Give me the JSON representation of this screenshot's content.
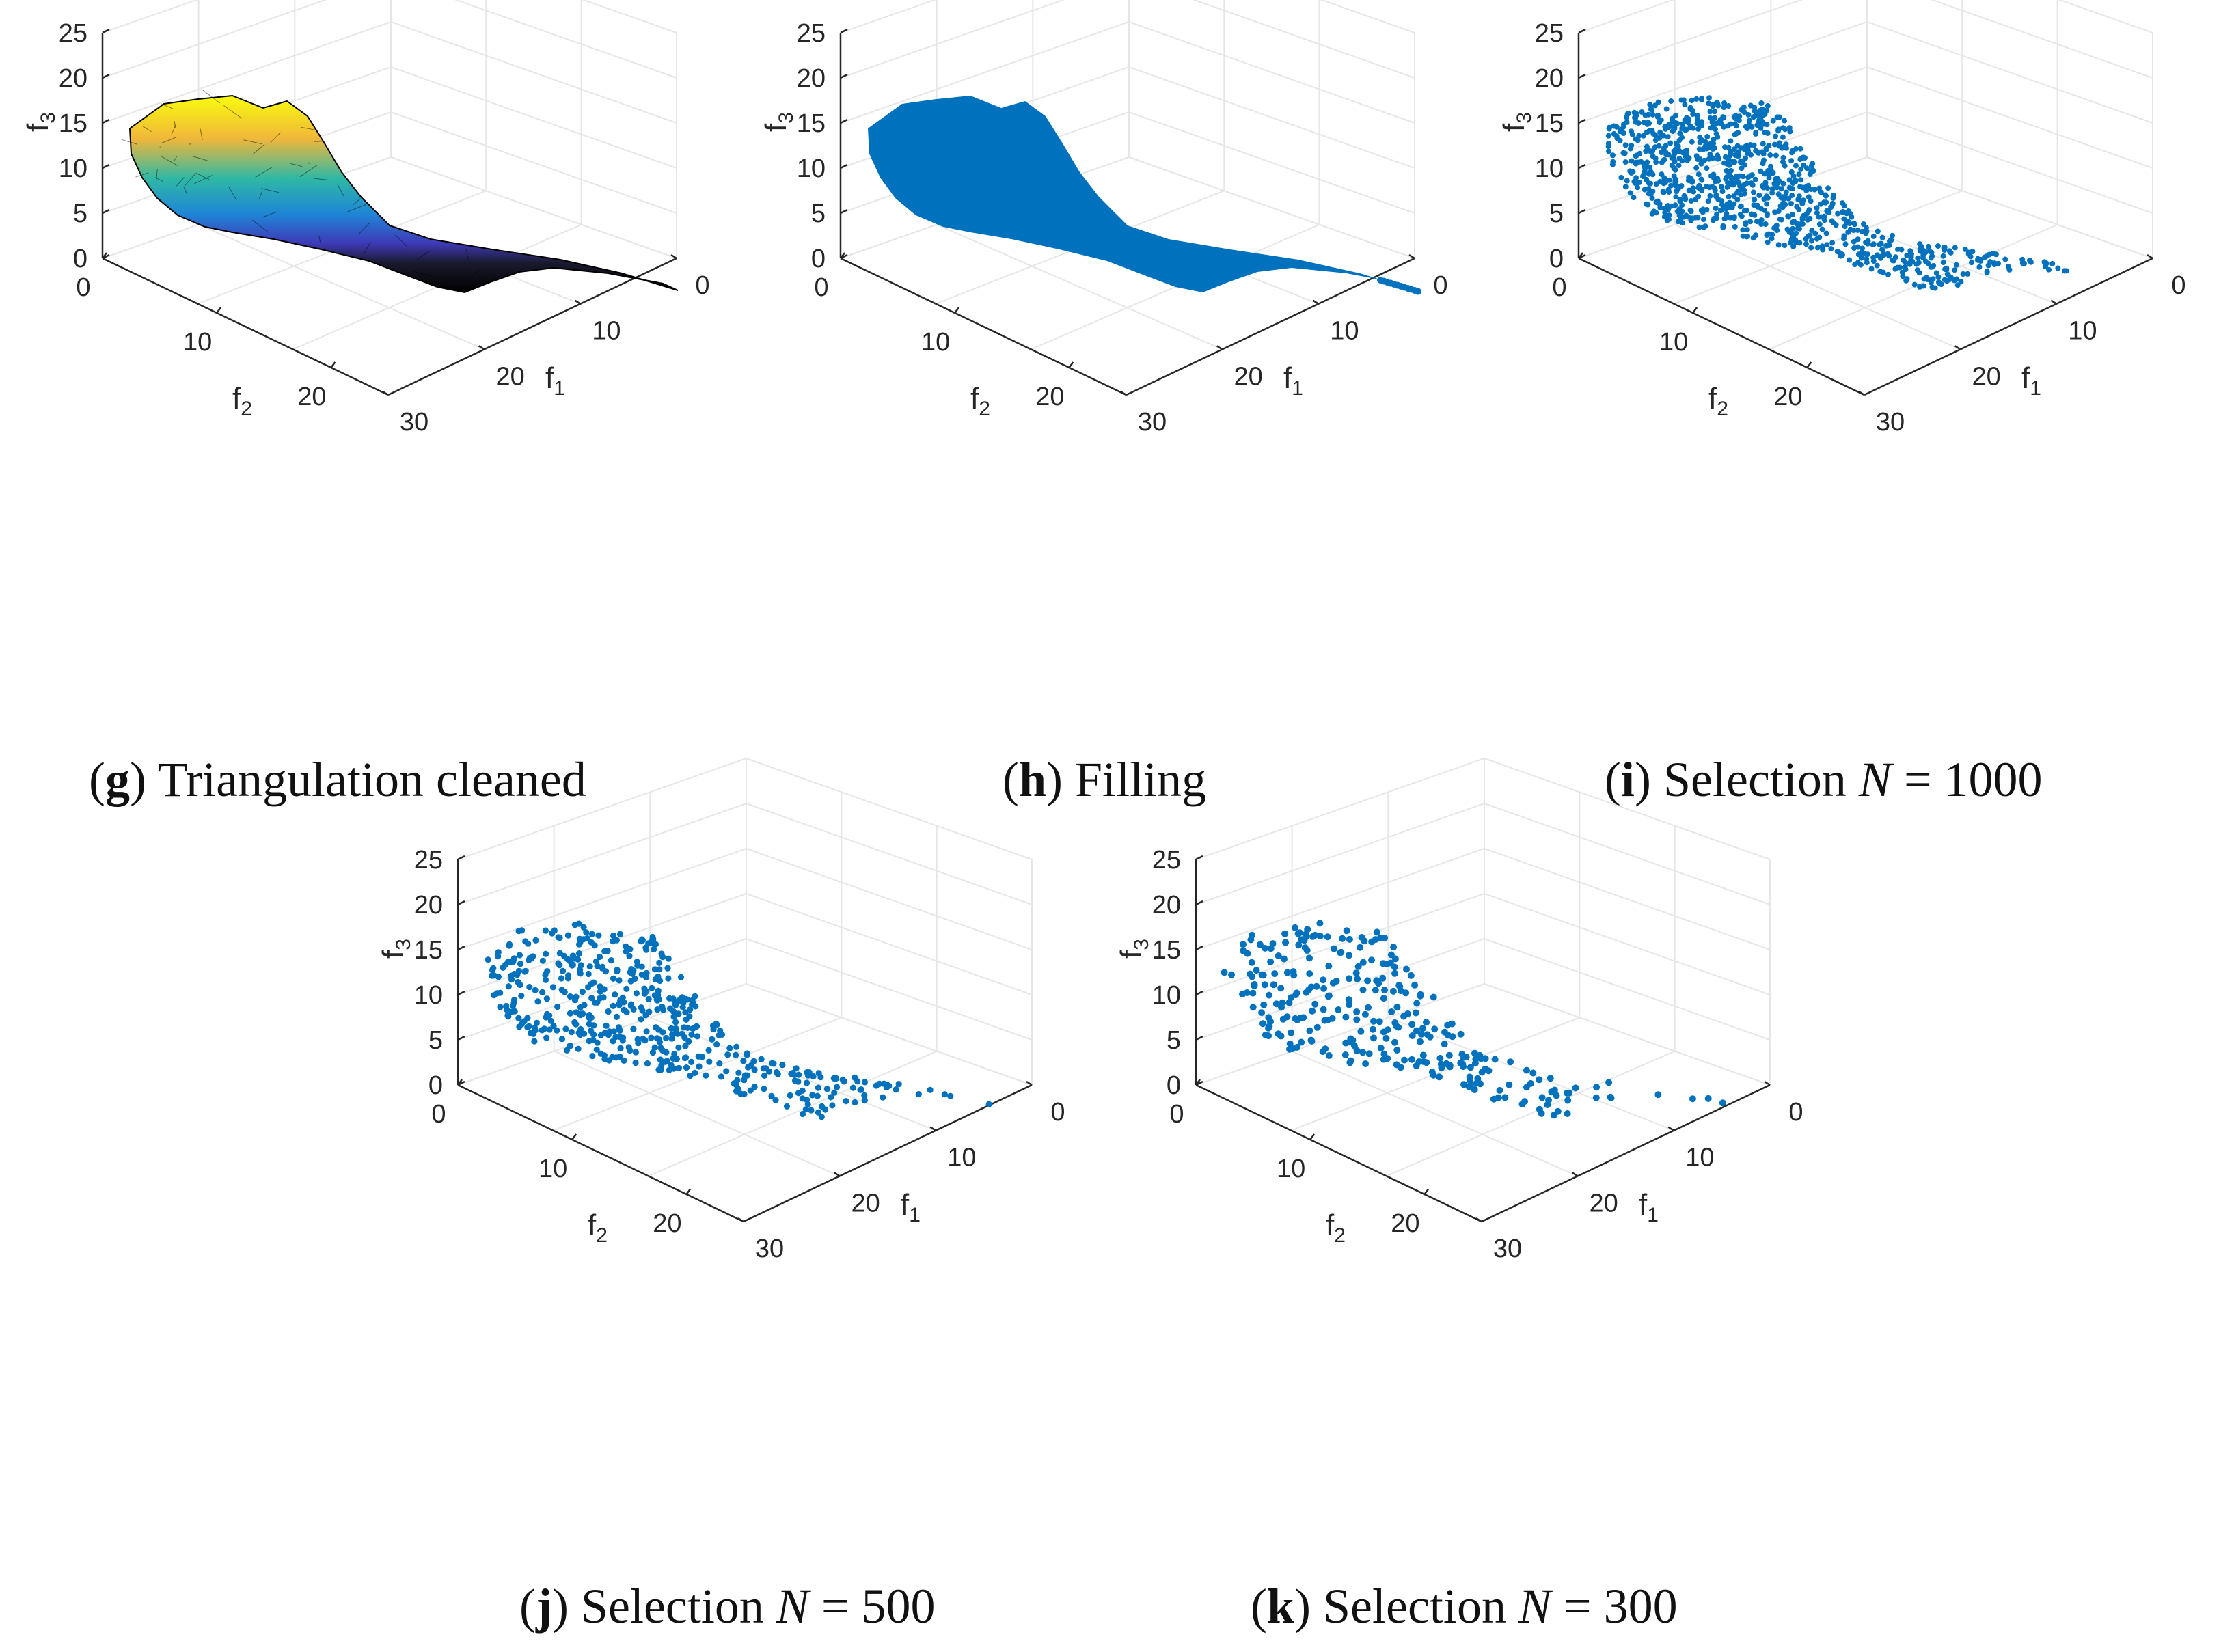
{
  "axes": {
    "f1_label": "f",
    "f1_sub": "1",
    "f2_label": "f",
    "f2_sub": "2",
    "f3_label": "f",
    "f3_sub": "3",
    "f1_ticks": [
      "0",
      "10",
      "20",
      "30"
    ],
    "f2_ticks": [
      "0",
      "10",
      "20"
    ],
    "f3_ticks": [
      "0",
      "5",
      "10",
      "15",
      "20",
      "25"
    ]
  },
  "colors": {
    "points": "#0072BD",
    "axis": "#262626",
    "grid": "#e6e6e6"
  },
  "chart_data": [
    {
      "id": "g",
      "type": "surface",
      "render": "triangulated-mesh",
      "caption_letter": "g",
      "caption_text": "Triangulation cleaned",
      "caption_eq": "",
      "caption_n": "",
      "xlabel": "f1",
      "ylabel": "f2",
      "zlabel": "f3",
      "xlim": [
        0,
        30
      ],
      "ylim": [
        0,
        25
      ],
      "zlim": [
        0,
        25
      ],
      "colormap": "parula",
      "series": [
        {
          "name": "surface",
          "n_points": 0
        }
      ]
    },
    {
      "id": "h",
      "type": "scatter",
      "render": "dense-filled",
      "caption_letter": "h",
      "caption_text": "Filling",
      "caption_eq": "",
      "caption_n": "",
      "xlabel": "f1",
      "ylabel": "f2",
      "zlabel": "f3",
      "xlim": [
        0,
        30
      ],
      "ylim": [
        0,
        25
      ],
      "zlim": [
        0,
        25
      ],
      "series": [
        {
          "name": "points",
          "n_points": 6000
        }
      ]
    },
    {
      "id": "i",
      "type": "scatter",
      "render": "points",
      "caption_letter": "i",
      "caption_text": "Selection",
      "caption_eq": "N",
      "caption_n": "= 1000",
      "xlabel": "f1",
      "ylabel": "f2",
      "zlabel": "f3",
      "xlim": [
        0,
        30
      ],
      "ylim": [
        0,
        25
      ],
      "zlim": [
        0,
        25
      ],
      "series": [
        {
          "name": "points",
          "n_points": 1000
        }
      ]
    },
    {
      "id": "j",
      "type": "scatter",
      "render": "points",
      "caption_letter": "j",
      "caption_text": "Selection",
      "caption_eq": "N",
      "caption_n": "= 500",
      "xlabel": "f1",
      "ylabel": "f2",
      "zlabel": "f3",
      "xlim": [
        0,
        30
      ],
      "ylim": [
        0,
        25
      ],
      "zlim": [
        0,
        25
      ],
      "series": [
        {
          "name": "points",
          "n_points": 500
        }
      ]
    },
    {
      "id": "k",
      "type": "scatter",
      "render": "points",
      "caption_letter": "k",
      "caption_text": "Selection",
      "caption_eq": "N",
      "caption_n": "= 300",
      "xlabel": "f1",
      "ylabel": "f2",
      "zlabel": "f3",
      "xlim": [
        0,
        30
      ],
      "ylim": [
        0,
        25
      ],
      "zlim": [
        0,
        25
      ],
      "series": [
        {
          "name": "points",
          "n_points": 300
        }
      ]
    }
  ]
}
